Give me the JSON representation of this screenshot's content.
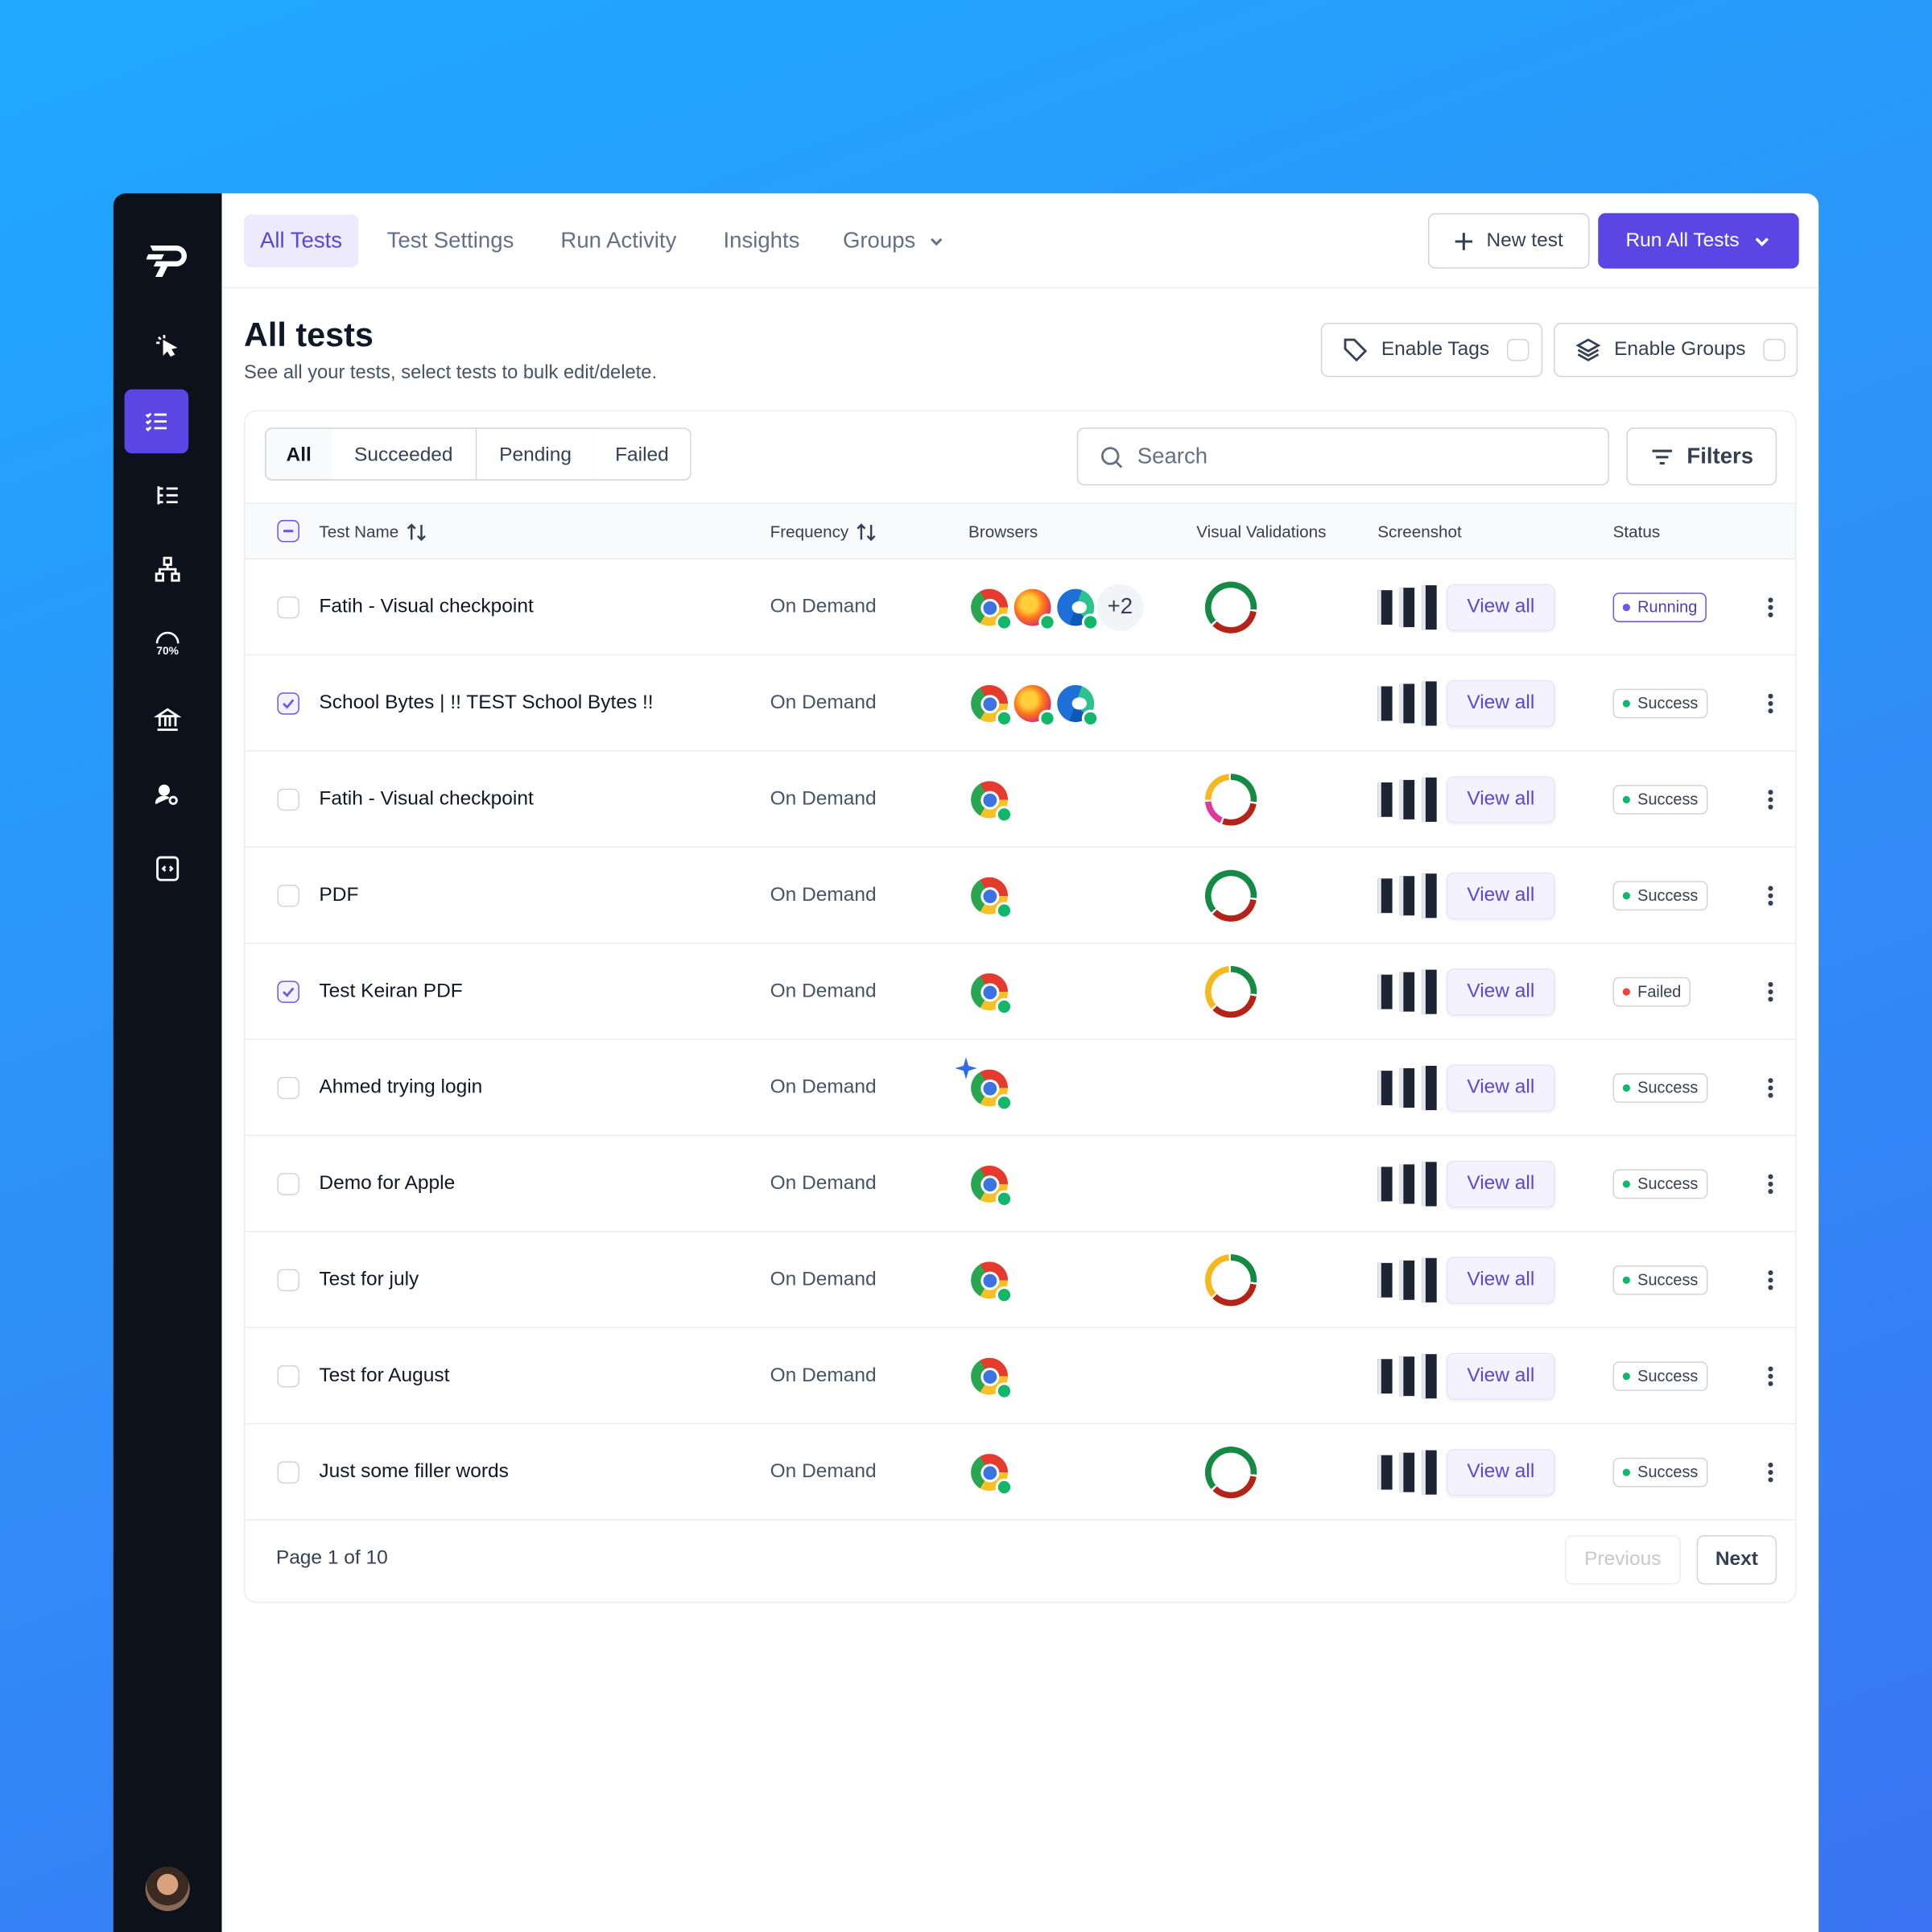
{
  "nav_tabs": [
    "All Tests",
    "Test Settings",
    "Run Activity",
    "Insights",
    "Groups"
  ],
  "actions": {
    "new_test": "New test",
    "run_all": "Run All Tests"
  },
  "sidebar": {
    "gauge_label": "70%"
  },
  "header": {
    "title": "All tests",
    "subtitle": "See all your tests, select tests to bulk edit/delete."
  },
  "toggles": [
    "Enable Tags",
    "Enable Groups"
  ],
  "filter_tabs": [
    "All",
    "Succeeded",
    "Pending",
    "Failed"
  ],
  "search_placeholder": "Search",
  "filters_button": "Filters",
  "table": {
    "columns": [
      "Test Name",
      "Frequency",
      "Browsers",
      "Visual Validations",
      "Screenshot",
      "Status"
    ],
    "view_all_label": "View all",
    "rows": [
      {
        "name": "Fatih - Visual checkpoint",
        "frequency": "On Demand",
        "browsers": [
          "chrome",
          "firefox",
          "edge"
        ],
        "more_browsers": "+2",
        "checked": false,
        "visual": "green",
        "status": "Running"
      },
      {
        "name": "School Bytes | !! TEST School Bytes !!",
        "frequency": "On Demand",
        "browsers": [
          "chrome",
          "firefox",
          "edge"
        ],
        "checked": true,
        "visual": null,
        "status": "Success"
      },
      {
        "name": "Fatih - Visual checkpoint",
        "frequency": "On Demand",
        "browsers": [
          "chrome"
        ],
        "checked": false,
        "visual": "mixed",
        "status": "Success"
      },
      {
        "name": "PDF",
        "frequency": "On Demand",
        "browsers": [
          "chrome"
        ],
        "checked": false,
        "visual": "green",
        "status": "Success"
      },
      {
        "name": "Test Keiran PDF",
        "frequency": "On Demand",
        "browsers": [
          "chrome"
        ],
        "checked": true,
        "visual": "warning",
        "status": "Failed"
      },
      {
        "name": "Ahmed trying login",
        "frequency": "On Demand",
        "browsers": [
          "chrome"
        ],
        "checked": false,
        "visual": null,
        "status": "Success"
      },
      {
        "name": "Demo for Apple",
        "frequency": "On Demand",
        "browsers": [
          "chrome"
        ],
        "checked": false,
        "visual": null,
        "status": "Success"
      },
      {
        "name": "Test for july",
        "frequency": "On Demand",
        "browsers": [
          "chrome"
        ],
        "checked": false,
        "visual": "warning",
        "status": "Success"
      },
      {
        "name": "Test for August",
        "frequency": "On Demand",
        "browsers": [
          "chrome"
        ],
        "checked": false,
        "visual": null,
        "status": "Success"
      },
      {
        "name": "Just some filler words",
        "frequency": "On Demand",
        "browsers": [
          "chrome"
        ],
        "checked": false,
        "visual": "green",
        "status": "Success"
      }
    ]
  },
  "pagination": {
    "page": "Page 1 of 10",
    "previous": "Previous",
    "next": "Next"
  }
}
